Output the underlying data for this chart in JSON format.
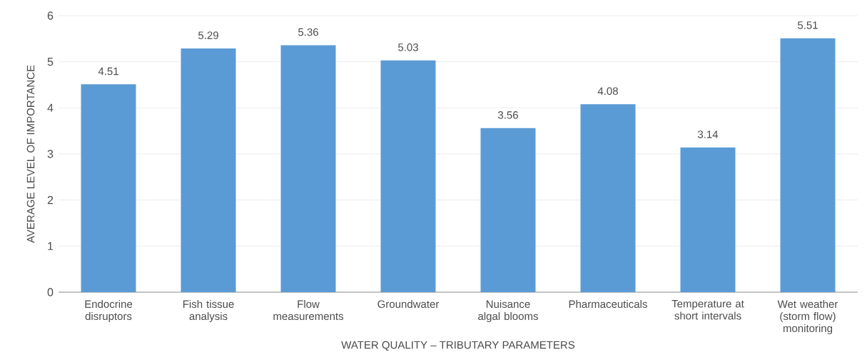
{
  "chart_data": {
    "type": "bar",
    "xlabel": "WATER QUALITY – TRIBUTARY PARAMETERS",
    "ylabel": "AVERAGE LEVEL OF IMPORTANCE",
    "categories": [
      "Endocrine disruptors",
      "Fish tissue analysis",
      "Flow measurements",
      "Groundwater",
      "Nuisance algal blooms",
      "Pharmaceuticals",
      "Temperature at short intervals",
      "Wet weather (storm flow) monitoring"
    ],
    "values": [
      4.51,
      5.29,
      5.36,
      5.03,
      3.56,
      4.08,
      3.14,
      5.51
    ],
    "color": "#5b9bd5",
    "ylim": [
      0,
      6
    ],
    "yticks": [
      0,
      1,
      2,
      3,
      4,
      5,
      6
    ],
    "grid": "y",
    "data_labels": true
  }
}
